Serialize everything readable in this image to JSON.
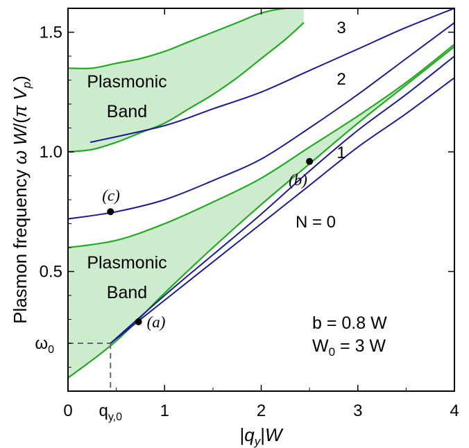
{
  "chart_data": {
    "type": "line",
    "xlabel": "|q_y|W",
    "ylabel": "Plasmon frequency  ω W/(π V_p)",
    "xlim": [
      0,
      4
    ],
    "ylim": [
      0,
      1.6
    ],
    "x_ticks": [
      {
        "value": 0,
        "label": "0"
      },
      {
        "value": 1,
        "label": "1"
      },
      {
        "value": 2,
        "label": "2"
      },
      {
        "value": 3,
        "label": "3"
      },
      {
        "value": 4,
        "label": "4"
      }
    ],
    "y_ticks": [
      {
        "value": 0.5,
        "label": "0.5"
      },
      {
        "value": 1.0,
        "label": "1.0"
      },
      {
        "value": 1.5,
        "label": "1.5"
      }
    ],
    "extra_ticks": {
      "q_y0": {
        "value": 0.44,
        "label": "q",
        "sub": "y,0"
      },
      "omega_0": {
        "value": 0.2,
        "label": "ω",
        "sub": "0"
      }
    },
    "colors": {
      "band_fill": "#cdeccd",
      "band_edge": "#22aa22",
      "mode": "#1a1a99",
      "dashed": "#666666"
    },
    "series": [
      {
        "name": "N = 0",
        "x": [
          0.44,
          1.0,
          1.5,
          2.0,
          2.5,
          3.0,
          3.5,
          4.0
        ],
        "y": [
          0.2,
          0.38,
          0.54,
          0.7,
          0.86,
          1.02,
          1.16,
          1.31
        ]
      },
      {
        "name": "1",
        "x": [
          0.44,
          1.0,
          1.5,
          2.0,
          2.5,
          3.0,
          3.5,
          4.0
        ],
        "y": [
          0.2,
          0.4,
          0.57,
          0.74,
          0.92,
          1.09,
          1.24,
          1.4
        ]
      },
      {
        "name": "2",
        "x": [
          0,
          0.5,
          1.0,
          1.5,
          2.0,
          2.5,
          3.0,
          3.5,
          4.0
        ],
        "y": [
          0.72,
          0.75,
          0.8,
          0.88,
          0.97,
          1.1,
          1.24,
          1.39,
          1.54
        ]
      },
      {
        "name": "3",
        "x": [
          0.23,
          1.0,
          1.5,
          2.0,
          2.5,
          3.0,
          3.5,
          4.0
        ],
        "y": [
          1.04,
          1.11,
          1.18,
          1.25,
          1.34,
          1.43,
          1.52,
          1.6
        ]
      }
    ],
    "bands": [
      {
        "label": "Plasmonic Band",
        "lower": {
          "x": [
            0,
            0.5,
            1.0,
            1.5,
            2.0,
            2.5,
            3.0,
            3.5,
            4.0
          ],
          "y": [
            0.055,
            0.21,
            0.41,
            0.6,
            0.78,
            0.95,
            1.12,
            1.28,
            1.44
          ]
        },
        "upper": {
          "x": [
            0,
            0.5,
            1.0,
            1.5,
            2.0,
            2.5,
            3.0,
            3.5,
            4.0
          ],
          "y": [
            0.6,
            0.63,
            0.7,
            0.79,
            0.89,
            1.02,
            1.15,
            1.29,
            1.45
          ]
        }
      },
      {
        "label": "Plasmonic Band",
        "lower": {
          "x": [
            0,
            0.25,
            0.5,
            0.75,
            1.0,
            1.25,
            1.5,
            1.75,
            2.0,
            2.25,
            2.44
          ],
          "y": [
            1.0,
            1.01,
            1.04,
            1.08,
            1.12,
            1.18,
            1.24,
            1.31,
            1.39,
            1.47,
            1.54
          ]
        },
        "upper": {
          "x": [
            0,
            0.25,
            0.5,
            0.75,
            1.0,
            1.25,
            1.5,
            1.75,
            2.0,
            2.25,
            2.44
          ],
          "y": [
            1.35,
            1.35,
            1.37,
            1.39,
            1.42,
            1.46,
            1.5,
            1.54,
            1.58,
            1.6,
            1.6
          ]
        }
      }
    ],
    "points": [
      {
        "label": "(a)",
        "x": 0.73,
        "y": 0.29
      },
      {
        "label": "(b)",
        "x": 2.5,
        "y": 0.96
      },
      {
        "label": "(c)",
        "x": 0.44,
        "y": 0.75
      }
    ],
    "annotations": [
      "b = 0.8 W",
      "W",
      "0",
      " = 3 W"
    ]
  }
}
